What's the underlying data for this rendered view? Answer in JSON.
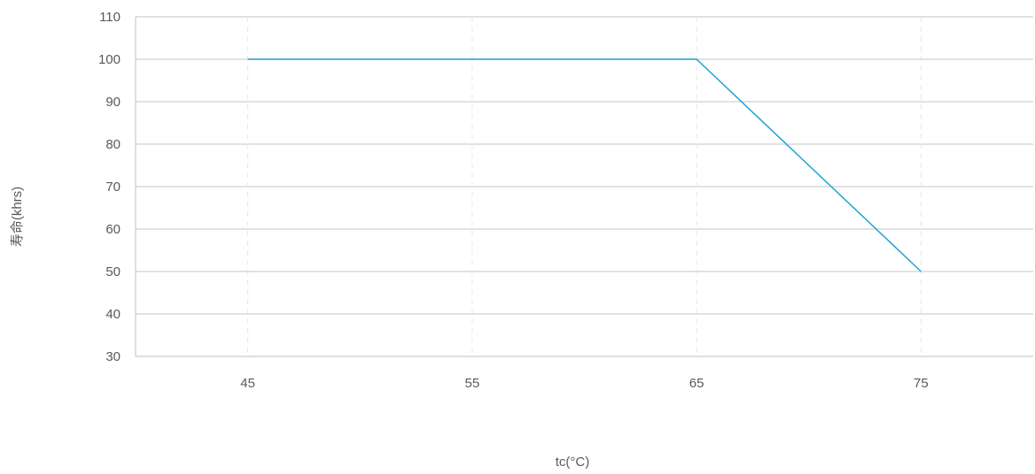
{
  "chart_data": {
    "type": "line",
    "title": "",
    "xlabel": "tc(°C)",
    "ylabel": "寿命(khrs)",
    "x": [
      45,
      55,
      65,
      75
    ],
    "x_tick_labels": [
      "45",
      "55",
      "65",
      "75"
    ],
    "xlim": [
      40,
      80
    ],
    "ylim": [
      30,
      110
    ],
    "y_ticks": [
      30,
      40,
      50,
      60,
      70,
      80,
      90,
      100,
      110
    ],
    "grid": {
      "horizontal": true,
      "vertical": "dashed"
    },
    "series": [
      {
        "color": "#1fa3d2",
        "points": [
          {
            "x": 45,
            "y": 100
          },
          {
            "x": 65,
            "y": 100
          },
          {
            "x": 75,
            "y": 50
          }
        ]
      }
    ]
  }
}
